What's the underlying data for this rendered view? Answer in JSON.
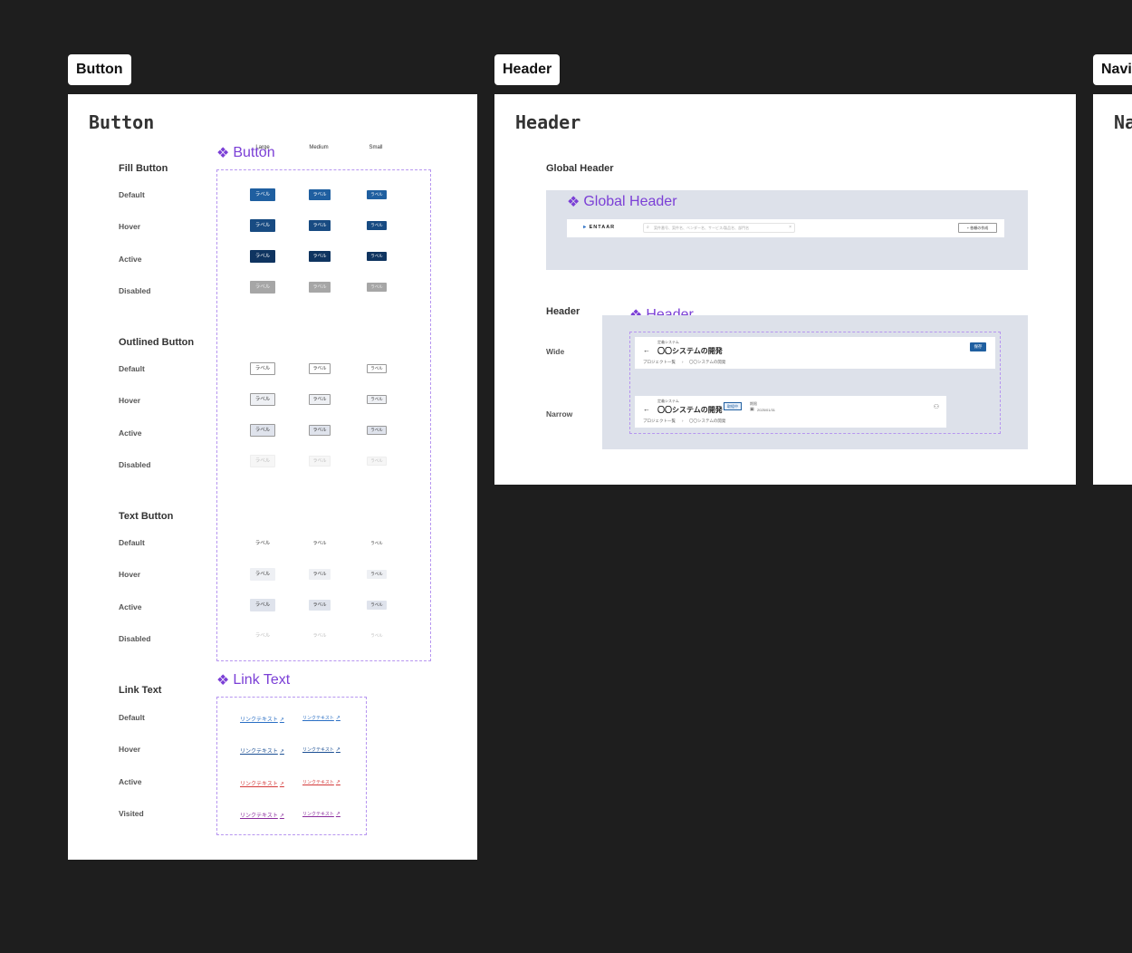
{
  "frames": {
    "button": {
      "tab": "Button",
      "title": "Button"
    },
    "header": {
      "tab": "Header",
      "title": "Header"
    },
    "navi": {
      "tab": "Navi",
      "title": "Na"
    }
  },
  "button_frame": {
    "component_name": "Button",
    "columns": [
      "Large",
      "Medium",
      "Small"
    ],
    "label": "ラベル",
    "sections": {
      "fill": "Fill Button",
      "outlined": "Outlined Button",
      "text": "Text Button",
      "link": "Link Text"
    },
    "states": [
      "Default",
      "Hover",
      "Active",
      "Disabled"
    ],
    "link_states": [
      "Default",
      "Hover",
      "Active",
      "Visited"
    ],
    "link_component_name": "Link Text",
    "link_label": "リンクテキスト",
    "colors": {
      "fill_default": "#1f5fa0",
      "fill_hover": "#184b82",
      "fill_active": "#0f3460",
      "fill_disabled": "#a6a6a6",
      "link_default": "#2a6fc4",
      "link_hover": "#1b4f94",
      "link_active": "#d43a3a",
      "link_visited": "#8a2b9c"
    }
  },
  "header_frame": {
    "global_header_section": "Global Header",
    "global_header_component": "Global Header",
    "logo": "ENTAAR",
    "search_placeholder": "案件番号、案件名、ベンダー名、サービス/製品名、部門名",
    "create_button": "+ 依頼の作成",
    "header_section": "Header",
    "header_component": "Header",
    "wide_label": "Wide",
    "narrow_label": "Narrow",
    "wide": {
      "overline": "定義システム",
      "title": "〇〇システムの開発",
      "breadcrumb_root": "プロジェクト一覧",
      "breadcrumb_current": "〇〇システムの開発",
      "save_button": "保存"
    },
    "narrow": {
      "overline": "定義システム",
      "title": "〇〇システムの開発",
      "status": "取組中",
      "due_label": "期限",
      "due_date": "2025/01/31",
      "breadcrumb_root": "プロジェクト一覧",
      "breadcrumb_current": "〇〇システムの開発"
    }
  }
}
